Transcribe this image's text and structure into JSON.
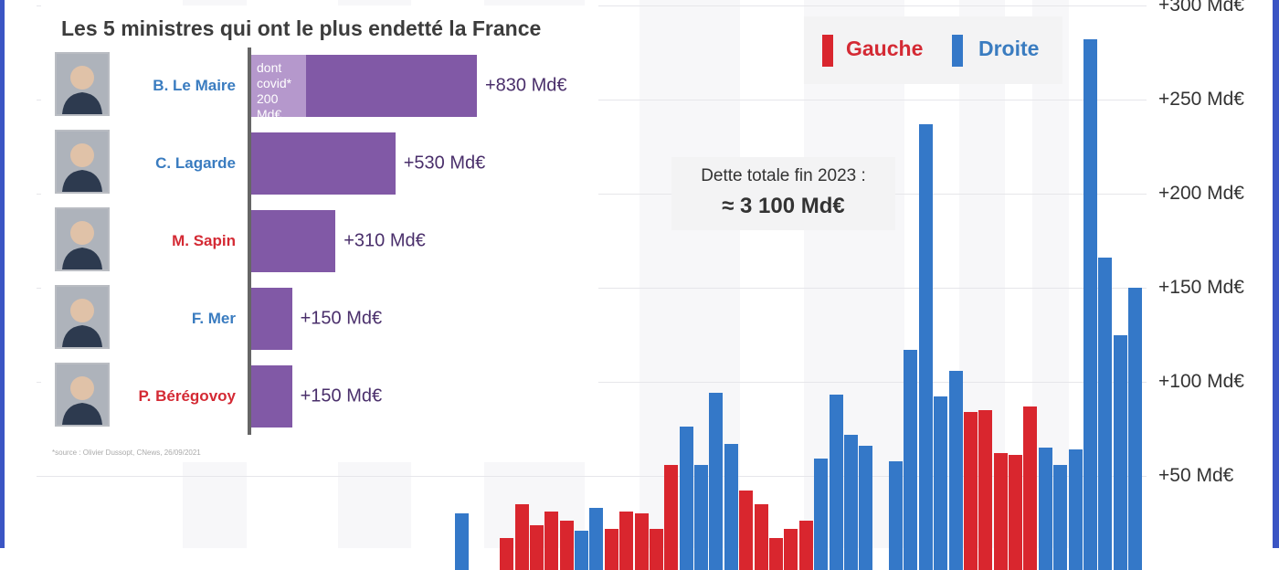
{
  "chart_data": [
    {
      "type": "bar",
      "title": "",
      "ylabel": "",
      "ylim": [
        0,
        300
      ],
      "yticks": [
        "+50 Md€",
        "+100 Md€",
        "+150 Md€",
        "+200 Md€",
        "+250 Md€",
        "+300 Md€"
      ],
      "ytick_values": [
        50,
        100,
        150,
        200,
        250,
        300
      ],
      "grid": true,
      "legend_placement": "top-right",
      "legend": [
        {
          "name": "Gauche",
          "color": "#d9262e"
        },
        {
          "name": "Droite",
          "color": "#3478c8"
        }
      ],
      "values": [
        30,
        null,
        null,
        17,
        35,
        24,
        31,
        26,
        21,
        33,
        22,
        31,
        30,
        22,
        56,
        76,
        56,
        94,
        67,
        42,
        35,
        17,
        22,
        26,
        59,
        93,
        72,
        66,
        null,
        58,
        117,
        237,
        92,
        106,
        84,
        85,
        62,
        61,
        87,
        65,
        56,
        64,
        282,
        166,
        125,
        150
      ],
      "sides": [
        "D",
        null,
        null,
        "G",
        "G",
        "G",
        "G",
        "G",
        "D",
        "D",
        "G",
        "G",
        "G",
        "G",
        "G",
        "D",
        "D",
        "D",
        "D",
        "G",
        "G",
        "G",
        "G",
        "G",
        "D",
        "D",
        "D",
        "D",
        null,
        "D",
        "D",
        "D",
        "D",
        "D",
        "G",
        "G",
        "G",
        "G",
        "G",
        "D",
        "D",
        "D",
        "D",
        "D",
        "D",
        "D"
      ],
      "annotation": {
        "line1": "Dette totale fin 2023 :",
        "line2": "≈ 3 100 Md€"
      }
    },
    {
      "type": "bar",
      "orientation": "horizontal",
      "title": "Les 5 ministres qui ont le plus endetté la France",
      "categories": [
        "B. Le Maire",
        "C. Lagarde",
        "M. Sapin",
        "F. Mer",
        "P. Bérégovoy"
      ],
      "values": [
        830,
        530,
        310,
        150,
        150
      ],
      "value_labels": [
        "+830 Md€",
        "+530 Md€",
        "+310 Md€",
        "+150 Md€",
        "+150 Md€"
      ],
      "name_colors": [
        "#3a7cc0",
        "#3a7cc0",
        "#d42a34",
        "#3a7cc0",
        "#d42a34"
      ],
      "covid": {
        "value": 200,
        "label_lines": [
          "dont",
          "covid*",
          "200 Md€"
        ]
      },
      "bar_color": "#8159a6",
      "covid_color": "#b598cc",
      "source": "*source : Olivier Dussopt, CNews, 26/09/2021"
    }
  ],
  "colors": {
    "gauche": "#d9262e",
    "droite": "#3478c8",
    "frame": "#3b55c4"
  }
}
